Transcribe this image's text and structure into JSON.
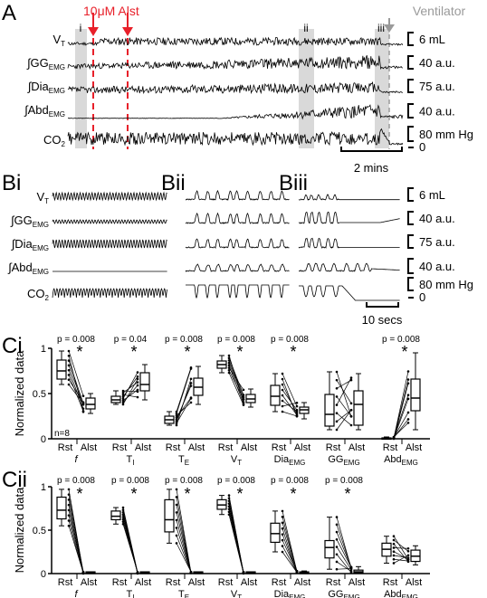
{
  "panels": {
    "A": "A",
    "Bi": "Bi",
    "Bii": "Bii",
    "Biii": "Biii",
    "Ci": "Ci",
    "Cii": "Cii"
  },
  "panel_A": {
    "drug_label": "10μM Alst",
    "ventilator_label": "Ventilator",
    "epochs": [
      "i",
      "ii",
      "iii"
    ],
    "traces": [
      {
        "label": "V",
        "sub": "T",
        "scale": "6 mL"
      },
      {
        "label": "∫GG",
        "sub": "EMG",
        "scale": "40 a.u."
      },
      {
        "label": "∫Dia",
        "sub": "EMG",
        "scale": "75 a.u."
      },
      {
        "label": "∫Abd",
        "sub": "EMG",
        "scale": "40 a.u."
      },
      {
        "label": "CO",
        "sub": "2",
        "scale": "80 mm Hg"
      }
    ],
    "co2_zero": "0",
    "time_scale": "2 mins"
  },
  "panel_B": {
    "traces": [
      {
        "label": "V",
        "sub": "T",
        "scale": "6 mL"
      },
      {
        "label": "∫GG",
        "sub": "EMG",
        "scale": "40 a.u."
      },
      {
        "label": "∫Dia",
        "sub": "EMG",
        "scale": "75 a.u."
      },
      {
        "label": "∫Abd",
        "sub": "EMG",
        "scale": "40 a.u."
      },
      {
        "label": "CO",
        "sub": "2",
        "scale": "80 mm Hg"
      }
    ],
    "co2_zero": "0",
    "time_scale": "10 secs"
  },
  "colors": {
    "drug": "#e8202a",
    "ventilator": "#9a9a9a",
    "epoch_shade": "#d9d9d9",
    "trace": "#000000"
  },
  "chart_data": [
    {
      "type": "box",
      "panel": "Ci",
      "ylabel": "Normalized data",
      "ylim": [
        0,
        1
      ],
      "yticks": [
        "0",
        "0.5",
        "1"
      ],
      "n_label": "n=8",
      "conditions": [
        "Rst",
        "Alst"
      ],
      "groups": [
        {
          "name": "f",
          "sub": "",
          "p": "p = 0.008",
          "significant": true,
          "Rst": {
            "min": 0.6,
            "q1": 0.66,
            "median": 0.75,
            "q3": 0.87,
            "max": 0.97
          },
          "Alst": {
            "min": 0.28,
            "q1": 0.33,
            "median": 0.38,
            "q3": 0.45,
            "max": 0.5
          }
        },
        {
          "name": "T",
          "sub": "I",
          "p": "p = 0.04",
          "significant": true,
          "Rst": {
            "min": 0.38,
            "q1": 0.4,
            "median": 0.43,
            "q3": 0.47,
            "max": 0.53
          },
          "Alst": {
            "min": 0.43,
            "q1": 0.53,
            "median": 0.6,
            "q3": 0.73,
            "max": 0.82
          }
        },
        {
          "name": "T",
          "sub": "E",
          "p": "p = 0.008",
          "significant": true,
          "Rst": {
            "min": 0.15,
            "q1": 0.17,
            "median": 0.21,
            "q3": 0.25,
            "max": 0.3
          },
          "Alst": {
            "min": 0.38,
            "q1": 0.48,
            "median": 0.57,
            "q3": 0.67,
            "max": 0.8
          }
        },
        {
          "name": "V",
          "sub": "T",
          "p": "p = 0.008",
          "significant": true,
          "Rst": {
            "min": 0.73,
            "q1": 0.78,
            "median": 0.82,
            "q3": 0.86,
            "max": 0.92
          },
          "Alst": {
            "min": 0.35,
            "q1": 0.4,
            "median": 0.44,
            "q3": 0.49,
            "max": 0.55
          }
        },
        {
          "name": "Dia",
          "sub": "EMG",
          "p": "p = 0.008",
          "significant": true,
          "Rst": {
            "min": 0.3,
            "q1": 0.37,
            "median": 0.47,
            "q3": 0.59,
            "max": 0.72
          },
          "Alst": {
            "min": 0.22,
            "q1": 0.28,
            "median": 0.32,
            "q3": 0.35,
            "max": 0.4
          }
        },
        {
          "name": "GG",
          "sub": "EMG",
          "p": "",
          "significant": false,
          "Rst": {
            "min": 0.1,
            "q1": 0.14,
            "median": 0.27,
            "q3": 0.49,
            "max": 0.74
          },
          "Alst": {
            "min": 0.1,
            "q1": 0.15,
            "median": 0.38,
            "q3": 0.53,
            "max": 0.72
          }
        },
        {
          "name": "Abd",
          "sub": "EMG",
          "p": "p = 0.008",
          "significant": true,
          "Rst": {
            "min": 0.0,
            "q1": 0.0,
            "median": 0.0,
            "q3": 0.01,
            "max": 0.02
          },
          "Alst": {
            "min": 0.1,
            "q1": 0.31,
            "median": 0.45,
            "q3": 0.66,
            "max": 0.95
          }
        }
      ]
    },
    {
      "type": "box",
      "panel": "Cii",
      "ylabel": "Normalized data",
      "ylim": [
        0,
        1
      ],
      "yticks": [
        "0",
        "0.5",
        "1"
      ],
      "n_label": "",
      "conditions": [
        "Rst",
        "Alst"
      ],
      "groups": [
        {
          "name": "f",
          "sub": "",
          "p": "p = 0.008",
          "significant": true,
          "Rst": {
            "min": 0.55,
            "q1": 0.63,
            "median": 0.73,
            "q3": 0.88,
            "max": 0.97
          },
          "Alst": {
            "min": 0.0,
            "q1": 0.0,
            "median": 0.01,
            "q3": 0.02,
            "max": 0.02
          }
        },
        {
          "name": "T",
          "sub": "I",
          "p": "p = 0.008",
          "significant": true,
          "Rst": {
            "min": 0.57,
            "q1": 0.62,
            "median": 0.66,
            "q3": 0.72,
            "max": 0.76
          },
          "Alst": {
            "min": 0.0,
            "q1": 0.0,
            "median": 0.01,
            "q3": 0.02,
            "max": 0.02
          }
        },
        {
          "name": "T",
          "sub": "E",
          "p": "p = 0.008",
          "significant": true,
          "Rst": {
            "min": 0.35,
            "q1": 0.48,
            "median": 0.62,
            "q3": 0.85,
            "max": 0.97
          },
          "Alst": {
            "min": 0.0,
            "q1": 0.0,
            "median": 0.01,
            "q3": 0.02,
            "max": 0.02
          }
        },
        {
          "name": "V",
          "sub": "T",
          "p": "p = 0.008",
          "significant": true,
          "Rst": {
            "min": 0.68,
            "q1": 0.74,
            "median": 0.79,
            "q3": 0.85,
            "max": 0.9
          },
          "Alst": {
            "min": 0.0,
            "q1": 0.0,
            "median": 0.01,
            "q3": 0.02,
            "max": 0.02
          }
        },
        {
          "name": "Dia",
          "sub": "EMG",
          "p": "p = 0.008",
          "significant": true,
          "Rst": {
            "min": 0.25,
            "q1": 0.36,
            "median": 0.46,
            "q3": 0.58,
            "max": 0.72
          },
          "Alst": {
            "min": 0.0,
            "q1": 0.0,
            "median": 0.01,
            "q3": 0.02,
            "max": 0.03
          }
        },
        {
          "name": "GG",
          "sub": "EMG",
          "p": "p = 0.008",
          "significant": true,
          "Rst": {
            "min": 0.05,
            "q1": 0.18,
            "median": 0.3,
            "q3": 0.38,
            "max": 0.65
          },
          "Alst": {
            "min": 0.0,
            "q1": 0.01,
            "median": 0.02,
            "q3": 0.04,
            "max": 0.08
          }
        },
        {
          "name": "Abd",
          "sub": "EMG",
          "p": "",
          "significant": false,
          "Rst": {
            "min": 0.12,
            "q1": 0.2,
            "median": 0.28,
            "q3": 0.35,
            "max": 0.43
          },
          "Alst": {
            "min": 0.1,
            "q1": 0.14,
            "median": 0.2,
            "q3": 0.27,
            "max": 0.32
          }
        }
      ]
    }
  ]
}
